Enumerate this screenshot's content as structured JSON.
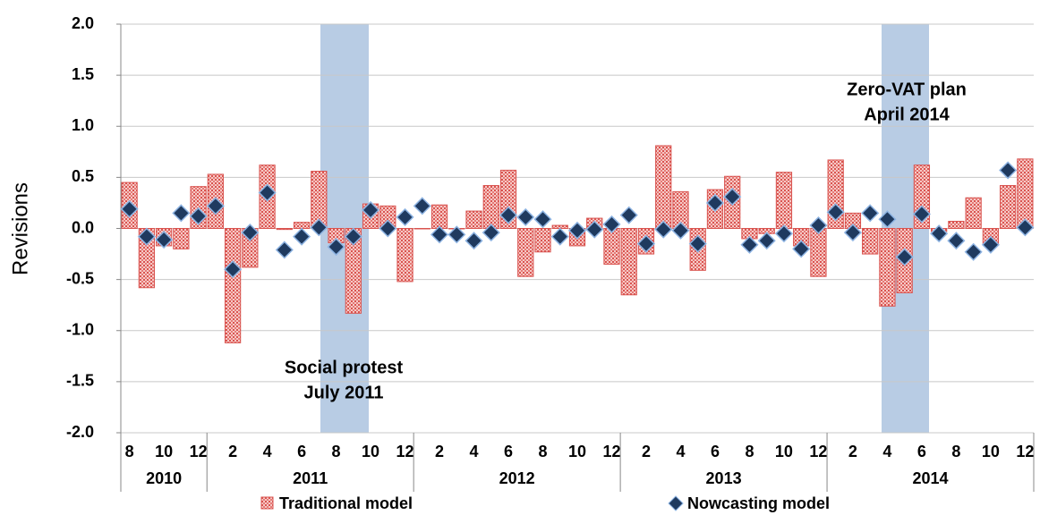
{
  "chart_data": {
    "type": "bar",
    "y_label": "Revisions",
    "categories": [
      "8",
      null,
      "10",
      null,
      "12",
      null,
      "2",
      null,
      "4",
      null,
      "6",
      null,
      "8",
      null,
      "10",
      null,
      "12",
      null,
      "2",
      null,
      "4",
      null,
      "6",
      null,
      "8",
      null,
      "10",
      null,
      "12",
      null,
      "2",
      null,
      "4",
      null,
      "6",
      null,
      "8",
      null,
      "10",
      null,
      "12",
      null,
      "2",
      null,
      "4",
      null,
      "6",
      null,
      "8",
      null,
      "10",
      null,
      "12"
    ],
    "groups": [
      "2010",
      "2011",
      "2012",
      "2013",
      "2014"
    ],
    "series": [
      {
        "name": "Traditional model",
        "type": "bar",
        "color": "#d9534f",
        "values": [
          0.45,
          -0.58,
          -0.17,
          -0.2,
          0.41,
          0.53,
          -1.12,
          -0.38,
          0.62,
          -0.01,
          0.06,
          0.56,
          -0.14,
          -0.83,
          0.24,
          0.22,
          -0.52,
          0.0,
          0.23,
          0.0,
          0.17,
          0.42,
          0.57,
          -0.47,
          -0.23,
          0.03,
          -0.17,
          0.1,
          -0.35,
          -0.65,
          -0.25,
          0.81,
          0.36,
          -0.41,
          0.38,
          0.51,
          -0.1,
          -0.05,
          0.55,
          -0.17,
          -0.47,
          0.67,
          0.15,
          -0.25,
          -0.76,
          -0.63,
          0.62,
          -0.03,
          0.07,
          0.3,
          -0.15,
          0.42,
          0.68
        ]
      },
      {
        "name": "Nowcasting model",
        "type": "scatter",
        "color": "#1f3a5f",
        "values": [
          0.19,
          -0.08,
          -0.11,
          0.15,
          0.12,
          0.22,
          -0.4,
          -0.04,
          0.35,
          -0.21,
          -0.08,
          0.01,
          -0.18,
          -0.08,
          0.18,
          0.0,
          0.11,
          0.22,
          -0.06,
          -0.06,
          -0.12,
          -0.04,
          0.13,
          0.11,
          0.09,
          -0.08,
          -0.02,
          -0.01,
          0.04,
          0.13,
          -0.15,
          -0.01,
          -0.02,
          -0.15,
          0.25,
          0.31,
          -0.16,
          -0.12,
          -0.05,
          -0.2,
          0.03,
          0.16,
          -0.04,
          0.15,
          0.09,
          -0.28,
          0.14,
          -0.05,
          -0.12,
          -0.23,
          -0.16,
          0.57,
          0.01
        ]
      }
    ],
    "ylim": [
      -2,
      2
    ],
    "yticks": [
      {
        "value": -2,
        "label": "-2.0"
      },
      -1.5,
      {
        "value": -1,
        "label": "-1.0"
      },
      -0.5,
      {
        "value": 0,
        "label": "0.0"
      },
      0.5,
      {
        "value": 1,
        "label": "1.0"
      },
      1.5,
      {
        "value": 2,
        "label": "2.0"
      }
    ],
    "grid": true,
    "legend": "bottom",
    "annotations": [
      {
        "lines": [
          "Social protest",
          "July 2011"
        ]
      },
      {
        "lines": [
          "Zero-VAT plan",
          "April 2014"
        ]
      }
    ]
  }
}
